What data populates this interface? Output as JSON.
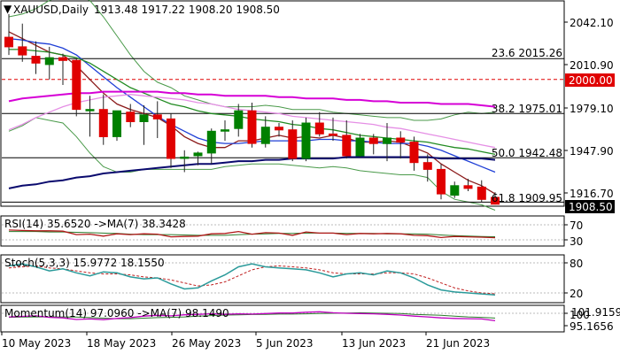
{
  "header": {
    "symbol": "XAUUSD,Daily",
    "ohlc": "1913.48 1917.22 1908.20 1908.50"
  },
  "price_axis": {
    "ticks": [
      "2042.10",
      "2010.90",
      "1979.10",
      "1947.90",
      "1916.70"
    ],
    "current_price_tag": "1908.50",
    "level_tag": "2000.00"
  },
  "fib_labels": [
    "23.6 2015.26",
    "38.2 1975.01",
    "50.0 1942.48",
    "61.8 1909.95"
  ],
  "rsi_panel": {
    "title": "RSI(14) 35.6520  ->MA(7) 38.3428",
    "ticks": [
      "70",
      "30"
    ]
  },
  "stoch_panel": {
    "title": "Stoch(5,3,3) 15.9772 18.1550",
    "ticks": [
      "80",
      "20"
    ]
  },
  "momentum_panel": {
    "title": "Momentum(14) 97.0960  ->MA(7) 98.1490",
    "ticks": [
      "101.9159",
      "100",
      "95.1656"
    ]
  },
  "time_axis": [
    "10 May 2023",
    "18 May 2023",
    "26 May 2023",
    "5 Jun 2023",
    "13 Jun 2023",
    "21 Jun 2023"
  ],
  "colors": {
    "bull": "#008000",
    "bear": "#e00000",
    "sma_fast": "#8b1a1a",
    "sma_mid": "#1f3fd6",
    "sma_green": "#228b22",
    "sma_magenta": "#d600d6",
    "sma_pink": "#e58fe5",
    "sma_navy": "#0a0a6e",
    "bollinger": "#4a9a4a",
    "dashed_level": "#e00000"
  },
  "chart_data": {
    "type": "candlestick",
    "symbol": "XAUUSD",
    "timeframe": "Daily",
    "last_bar": {
      "open": 1913.48,
      "high": 1917.22,
      "low": 1908.2,
      "close": 1908.5
    },
    "candles": [
      {
        "o": 2031,
        "h": 2048,
        "l": 2018,
        "c": 2024
      },
      {
        "o": 2024,
        "h": 2041,
        "l": 2013,
        "c": 2018
      },
      {
        "o": 2017,
        "h": 2028,
        "l": 2004,
        "c": 2012
      },
      {
        "o": 2011,
        "h": 2024,
        "l": 2000,
        "c": 2016
      },
      {
        "o": 2016,
        "h": 2019,
        "l": 1996,
        "c": 2014
      },
      {
        "o": 2014,
        "h": 2015,
        "l": 1973,
        "c": 1978
      },
      {
        "o": 1977,
        "h": 1988,
        "l": 1958,
        "c": 1978
      },
      {
        "o": 1978,
        "h": 1989,
        "l": 1952,
        "c": 1958
      },
      {
        "o": 1958,
        "h": 1976,
        "l": 1955,
        "c": 1977
      },
      {
        "o": 1976,
        "h": 1982,
        "l": 1965,
        "c": 1969
      },
      {
        "o": 1969,
        "h": 1981,
        "l": 1952,
        "c": 1974
      },
      {
        "o": 1974,
        "h": 1984,
        "l": 1957,
        "c": 1971
      },
      {
        "o": 1971,
        "h": 1975,
        "l": 1935,
        "c": 1942
      },
      {
        "o": 1942,
        "h": 1948,
        "l": 1932,
        "c": 1943
      },
      {
        "o": 1944,
        "h": 1947,
        "l": 1937,
        "c": 1946
      },
      {
        "o": 1946,
        "h": 1964,
        "l": 1938,
        "c": 1962
      },
      {
        "o": 1962,
        "h": 1970,
        "l": 1955,
        "c": 1963
      },
      {
        "o": 1964,
        "h": 1982,
        "l": 1958,
        "c": 1977
      },
      {
        "o": 1977,
        "h": 1983,
        "l": 1950,
        "c": 1953
      },
      {
        "o": 1953,
        "h": 1973,
        "l": 1950,
        "c": 1965
      },
      {
        "o": 1965,
        "h": 1968,
        "l": 1958,
        "c": 1963
      },
      {
        "o": 1963,
        "h": 1970,
        "l": 1940,
        "c": 1942
      },
      {
        "o": 1942,
        "h": 1972,
        "l": 1940,
        "c": 1968
      },
      {
        "o": 1968,
        "h": 1976,
        "l": 1958,
        "c": 1960
      },
      {
        "o": 1960,
        "h": 1972,
        "l": 1955,
        "c": 1959
      },
      {
        "o": 1959,
        "h": 1970,
        "l": 1942,
        "c": 1944
      },
      {
        "o": 1944,
        "h": 1960,
        "l": 1943,
        "c": 1957
      },
      {
        "o": 1957,
        "h": 1960,
        "l": 1945,
        "c": 1953
      },
      {
        "o": 1953,
        "h": 1968,
        "l": 1940,
        "c": 1957
      },
      {
        "o": 1957,
        "h": 1962,
        "l": 1942,
        "c": 1954
      },
      {
        "o": 1954,
        "h": 1958,
        "l": 1933,
        "c": 1939
      },
      {
        "o": 1939,
        "h": 1945,
        "l": 1925,
        "c": 1934
      },
      {
        "o": 1934,
        "h": 1938,
        "l": 1912,
        "c": 1916
      },
      {
        "o": 1915,
        "h": 1925,
        "l": 1913,
        "c": 1922
      },
      {
        "o": 1922,
        "h": 1927,
        "l": 1918,
        "c": 1920
      },
      {
        "o": 1921,
        "h": 1926,
        "l": 1910,
        "c": 1912
      },
      {
        "o": 1913.48,
        "h": 1917.22,
        "l": 1908.2,
        "c": 1908.5
      }
    ],
    "horizontal_levels": [
      {
        "label": "23.6 2015.26",
        "value": 2015.26,
        "style": "solid"
      },
      {
        "label": "38.2 1975.01",
        "value": 1975.01,
        "style": "solid"
      },
      {
        "label": "50.0 1942.48",
        "value": 1942.48,
        "style": "solid"
      },
      {
        "label": "61.8 1909.95",
        "value": 1909.95,
        "style": "solid"
      },
      {
        "label": "2000.00",
        "value": 2000.0,
        "style": "dashed"
      }
    ],
    "moving_averages": [
      {
        "color": "#8b1a1a",
        "values": [
          2035,
          2030,
          2025,
          2020,
          2018,
          2010,
          2000,
          1990,
          1982,
          1978,
          1975,
          1972,
          1966,
          1958,
          1953,
          1950,
          1950,
          1955,
          1955,
          1957,
          1959,
          1957,
          1958,
          1957,
          1959,
          1957,
          1954,
          1954,
          1955,
          1954,
          1950,
          1946,
          1938,
          1932,
          1926,
          1922,
          1916
        ]
      },
      {
        "color": "#1f3fd6",
        "values": [
          2030,
          2029,
          2027,
          2026,
          2023,
          2018,
          2010,
          2002,
          1994,
          1987,
          1980,
          1973,
          1967,
          1962,
          1957,
          1954,
          1953,
          1953,
          1954,
          1955,
          1955,
          1955,
          1955,
          1956,
          1956,
          1955,
          1955,
          1954,
          1953,
          1953,
          1953,
          1951,
          1948,
          1944,
          1940,
          1936,
          1932
        ]
      },
      {
        "color": "#228b22",
        "values": [
          2022,
          2022,
          2021,
          2020,
          2018,
          2016,
          2012,
          2006,
          2000,
          1994,
          1990,
          1986,
          1982,
          1980,
          1977,
          1975,
          1974,
          1973,
          1971,
          1970,
          1969,
          1967,
          1966,
          1964,
          1963,
          1961,
          1959,
          1958,
          1957,
          1956,
          1955,
          1954,
          1952,
          1950,
          1949,
          1947,
          1945
        ]
      },
      {
        "color": "#d600d6",
        "values": [
          1984,
          1986,
          1987,
          1988,
          1989,
          1990,
          1990,
          1991,
          1991,
          1991,
          1991,
          1991,
          1990,
          1990,
          1989,
          1989,
          1988,
          1988,
          1988,
          1988,
          1987,
          1987,
          1986,
          1986,
          1986,
          1985,
          1985,
          1984,
          1984,
          1983,
          1983,
          1983,
          1982,
          1982,
          1982,
          1981,
          1980
        ]
      },
      {
        "color": "#e58fe5",
        "values": [
          1963,
          1967,
          1972,
          1976,
          1980,
          1983,
          1985,
          1987,
          1988,
          1989,
          1988,
          1987,
          1986,
          1985,
          1983,
          1982,
          1980,
          1978,
          1977,
          1976,
          1975,
          1973,
          1972,
          1971,
          1970,
          1969,
          1968,
          1967,
          1965,
          1964,
          1962,
          1960,
          1958,
          1956,
          1954,
          1952,
          1950
        ]
      },
      {
        "color": "#0a0a6e",
        "values": [
          1920,
          1922,
          1923,
          1925,
          1926,
          1928,
          1929,
          1931,
          1932,
          1933,
          1934,
          1935,
          1936,
          1937,
          1938,
          1938,
          1939,
          1940,
          1940,
          1941,
          1941,
          1942,
          1942,
          1942,
          1942,
          1943,
          1943,
          1943,
          1943,
          1943,
          1943,
          1943,
          1942,
          1942,
          1942,
          1942,
          1941
        ]
      }
    ],
    "bollinger": {
      "upper": [
        2046,
        2048,
        2052,
        2058,
        2062,
        2062,
        2058,
        2046,
        2032,
        2018,
        2006,
        1998,
        1994,
        1988,
        1985,
        1982,
        1980,
        1980,
        1980,
        1981,
        1980,
        1978,
        1978,
        1978,
        1976,
        1975,
        1974,
        1973,
        1972,
        1972,
        1970,
        1970,
        1971,
        1974,
        1976,
        1975,
        1976
      ],
      "lower": [
        1962,
        1966,
        1972,
        1970,
        1968,
        1958,
        1946,
        1936,
        1932,
        1932,
        1934,
        1934,
        1934,
        1934,
        1934,
        1934,
        1936,
        1937,
        1938,
        1938,
        1938,
        1937,
        1936,
        1935,
        1936,
        1935,
        1933,
        1932,
        1931,
        1930,
        1930,
        1928,
        1918,
        1912,
        1910,
        1908,
        1904
      ]
    },
    "rsi": {
      "period": 14,
      "value": 35.652,
      "ma_period": 7,
      "ma_value": 38.3428,
      "values": [
        56,
        55,
        54,
        54,
        53,
        44,
        45,
        40,
        46,
        44,
        46,
        45,
        38,
        39,
        40,
        46,
        47,
        52,
        45,
        49,
        48,
        42,
        51,
        48,
        48,
        44,
        47,
        46,
        47,
        46,
        42,
        41,
        36,
        39,
        38,
        37,
        35.652
      ],
      "ma_values": [
        52,
        52,
        52,
        51,
        51,
        50,
        49,
        48,
        47,
        45,
        44,
        44,
        44,
        43,
        42,
        42,
        42,
        44,
        45,
        46,
        47,
        47,
        48,
        48,
        48,
        47,
        47,
        47,
        46,
        46,
        46,
        45,
        43,
        41,
        40,
        39,
        38.3428
      ]
    },
    "stochastic": {
      "params": "5,3,3",
      "k": 15.9772,
      "d": 18.155,
      "k_values": [
        74,
        78,
        72,
        64,
        68,
        60,
        54,
        62,
        60,
        52,
        48,
        50,
        38,
        28,
        30,
        44,
        56,
        72,
        78,
        72,
        70,
        68,
        66,
        60,
        52,
        58,
        60,
        56,
        64,
        60,
        50,
        36,
        26,
        22,
        20,
        18,
        15.9772
      ],
      "d_values": [
        70,
        72,
        74,
        70,
        68,
        64,
        60,
        58,
        58,
        56,
        52,
        50,
        46,
        40,
        34,
        36,
        42,
        54,
        66,
        72,
        74,
        72,
        70,
        66,
        60,
        58,
        58,
        58,
        60,
        60,
        58,
        50,
        40,
        30,
        24,
        20,
        18.155
      ]
    },
    "momentum": {
      "period": 14,
      "value": 97.096,
      "ma_period": 7,
      "ma_value": 98.149,
      "values": [
        98.6,
        98.8,
        99.0,
        98.4,
        98.2,
        97.6,
        97.8,
        97.5,
        98.0,
        98.3,
        98.9,
        99.2,
        99.0,
        99.4,
        99.6,
        99.8,
        99.6,
        99.8,
        99.7,
        99.9,
        100.1,
        100.1,
        100.4,
        100.6,
        100.2,
        100.0,
        99.9,
        99.8,
        99.6,
        99.3,
        98.9,
        98.6,
        98.2,
        98.0,
        97.9,
        97.8,
        97.096
      ],
      "ma_values": [
        98.4,
        98.5,
        98.6,
        98.6,
        98.6,
        98.5,
        98.3,
        98.1,
        97.9,
        97.9,
        98.1,
        98.3,
        98.4,
        98.6,
        98.9,
        99.1,
        99.3,
        99.4,
        99.5,
        99.6,
        99.7,
        99.7,
        99.8,
        99.9,
        100.0,
        100.1,
        100.2,
        100.1,
        100.0,
        99.9,
        99.6,
        99.4,
        99.2,
        98.9,
        98.6,
        98.4,
        98.149
      ]
    }
  }
}
